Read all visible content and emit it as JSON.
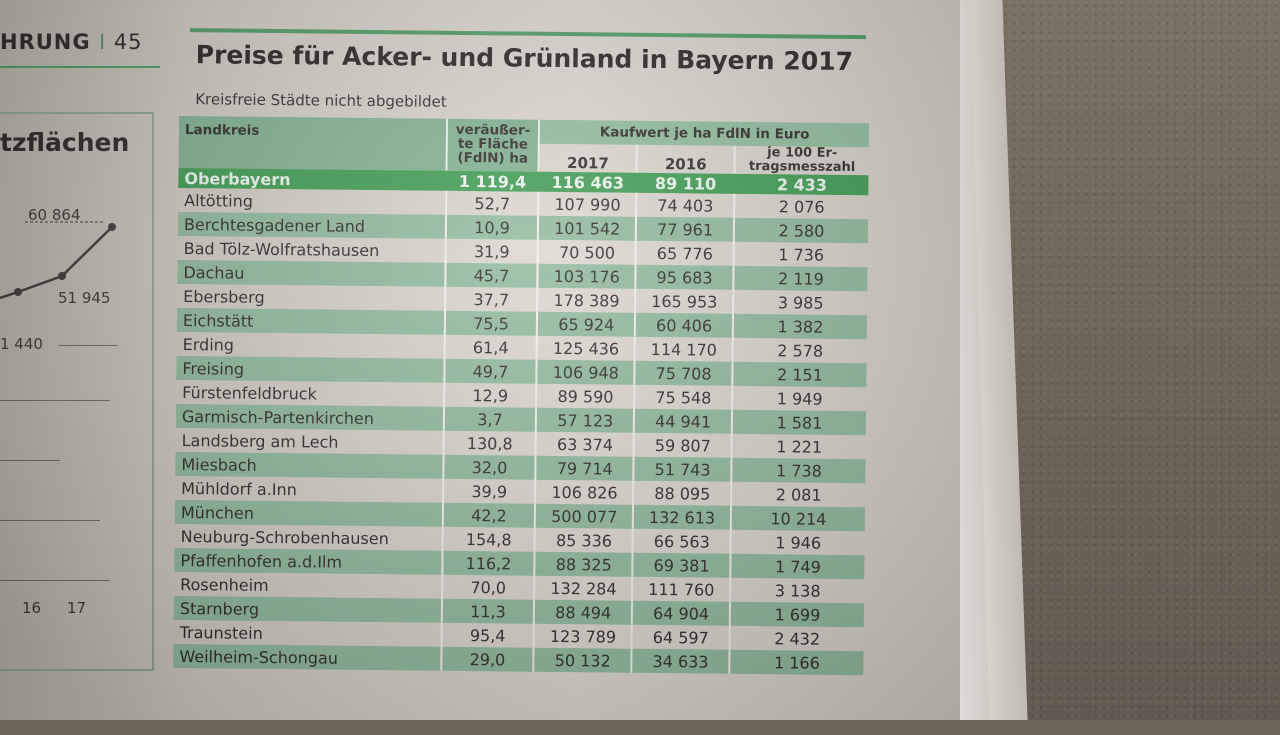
{
  "left_page": {
    "header": "HRUNG",
    "page_number": "45",
    "box_title": "tzflächen",
    "chart_labels": [
      "60 864",
      "51 945",
      "1 440"
    ],
    "axis_labels": [
      "16",
      "17"
    ]
  },
  "table": {
    "title": "Preise für Acker- und Grünland in Bayern 2017",
    "subtitle": "Kreisfreie Städte nicht abgebildet",
    "headers": {
      "landkreis": "Landkreis",
      "flaeche": "veräußer-te Fläche (FdlN) ha",
      "kaufwert": "Kaufwert je ha FdlN in Euro",
      "y2017": "2017",
      "y2016": "2016",
      "ertrag": "je 100 Er-tragsmesszahl"
    },
    "region": {
      "name": "Oberbayern",
      "flaeche": "1 119,4",
      "y2017": "116 463",
      "y2016": "89 110",
      "ertrag": "2 433"
    },
    "rows": [
      {
        "name": "Altötting",
        "flaeche": "52,7",
        "y2017": "107 990",
        "y2016": "74 403",
        "ertrag": "2 076"
      },
      {
        "name": "Berchtesgadener Land",
        "flaeche": "10,9",
        "y2017": "101 542",
        "y2016": "77 961",
        "ertrag": "2 580"
      },
      {
        "name": "Bad Tölz-Wolfratshausen",
        "flaeche": "31,9",
        "y2017": "70 500",
        "y2016": "65 776",
        "ertrag": "1 736"
      },
      {
        "name": "Dachau",
        "flaeche": "45,7",
        "y2017": "103 176",
        "y2016": "95 683",
        "ertrag": "2 119"
      },
      {
        "name": "Ebersberg",
        "flaeche": "37,7",
        "y2017": "178 389",
        "y2016": "165 953",
        "ertrag": "3 985"
      },
      {
        "name": "Eichstätt",
        "flaeche": "75,5",
        "y2017": "65 924",
        "y2016": "60 406",
        "ertrag": "1 382"
      },
      {
        "name": "Erding",
        "flaeche": "61,4",
        "y2017": "125 436",
        "y2016": "114 170",
        "ertrag": "2 578"
      },
      {
        "name": "Freising",
        "flaeche": "49,7",
        "y2017": "106 948",
        "y2016": "75 708",
        "ertrag": "2 151"
      },
      {
        "name": "Fürstenfeldbruck",
        "flaeche": "12,9",
        "y2017": "89 590",
        "y2016": "75 548",
        "ertrag": "1 949"
      },
      {
        "name": "Garmisch-Partenkirchen",
        "flaeche": "3,7",
        "y2017": "57 123",
        "y2016": "44 941",
        "ertrag": "1 581"
      },
      {
        "name": "Landsberg am Lech",
        "flaeche": "130,8",
        "y2017": "63 374",
        "y2016": "59 807",
        "ertrag": "1 221"
      },
      {
        "name": "Miesbach",
        "flaeche": "32,0",
        "y2017": "79 714",
        "y2016": "51 743",
        "ertrag": "1 738"
      },
      {
        "name": "Mühldorf a.Inn",
        "flaeche": "39,9",
        "y2017": "106 826",
        "y2016": "88 095",
        "ertrag": "2 081"
      },
      {
        "name": "München",
        "flaeche": "42,2",
        "y2017": "500 077",
        "y2016": "132 613",
        "ertrag": "10 214"
      },
      {
        "name": "Neuburg-Schrobenhausen",
        "flaeche": "154,8",
        "y2017": "85 336",
        "y2016": "66 563",
        "ertrag": "1 946"
      },
      {
        "name": "Pfaffenhofen a.d.Ilm",
        "flaeche": "116,2",
        "y2017": "88 325",
        "y2016": "69 381",
        "ertrag": "1 749"
      },
      {
        "name": "Rosenheim",
        "flaeche": "70,0",
        "y2017": "132 284",
        "y2016": "111 760",
        "ertrag": "3 138"
      },
      {
        "name": "Starnberg",
        "flaeche": "11,3",
        "y2017": "88 494",
        "y2016": "64 904",
        "ertrag": "1 699"
      },
      {
        "name": "Traunstein",
        "flaeche": "95,4",
        "y2017": "123 789",
        "y2016": "64 597",
        "ertrag": "2 432"
      },
      {
        "name": "Weilheim-Schongau",
        "flaeche": "29,0",
        "y2017": "50 132",
        "y2016": "34 633",
        "ertrag": "1 166"
      }
    ]
  },
  "colors": {
    "accent_green": "#3b9a4f",
    "row_shade": "#8fb89a",
    "header_green": "#7fb08f"
  }
}
